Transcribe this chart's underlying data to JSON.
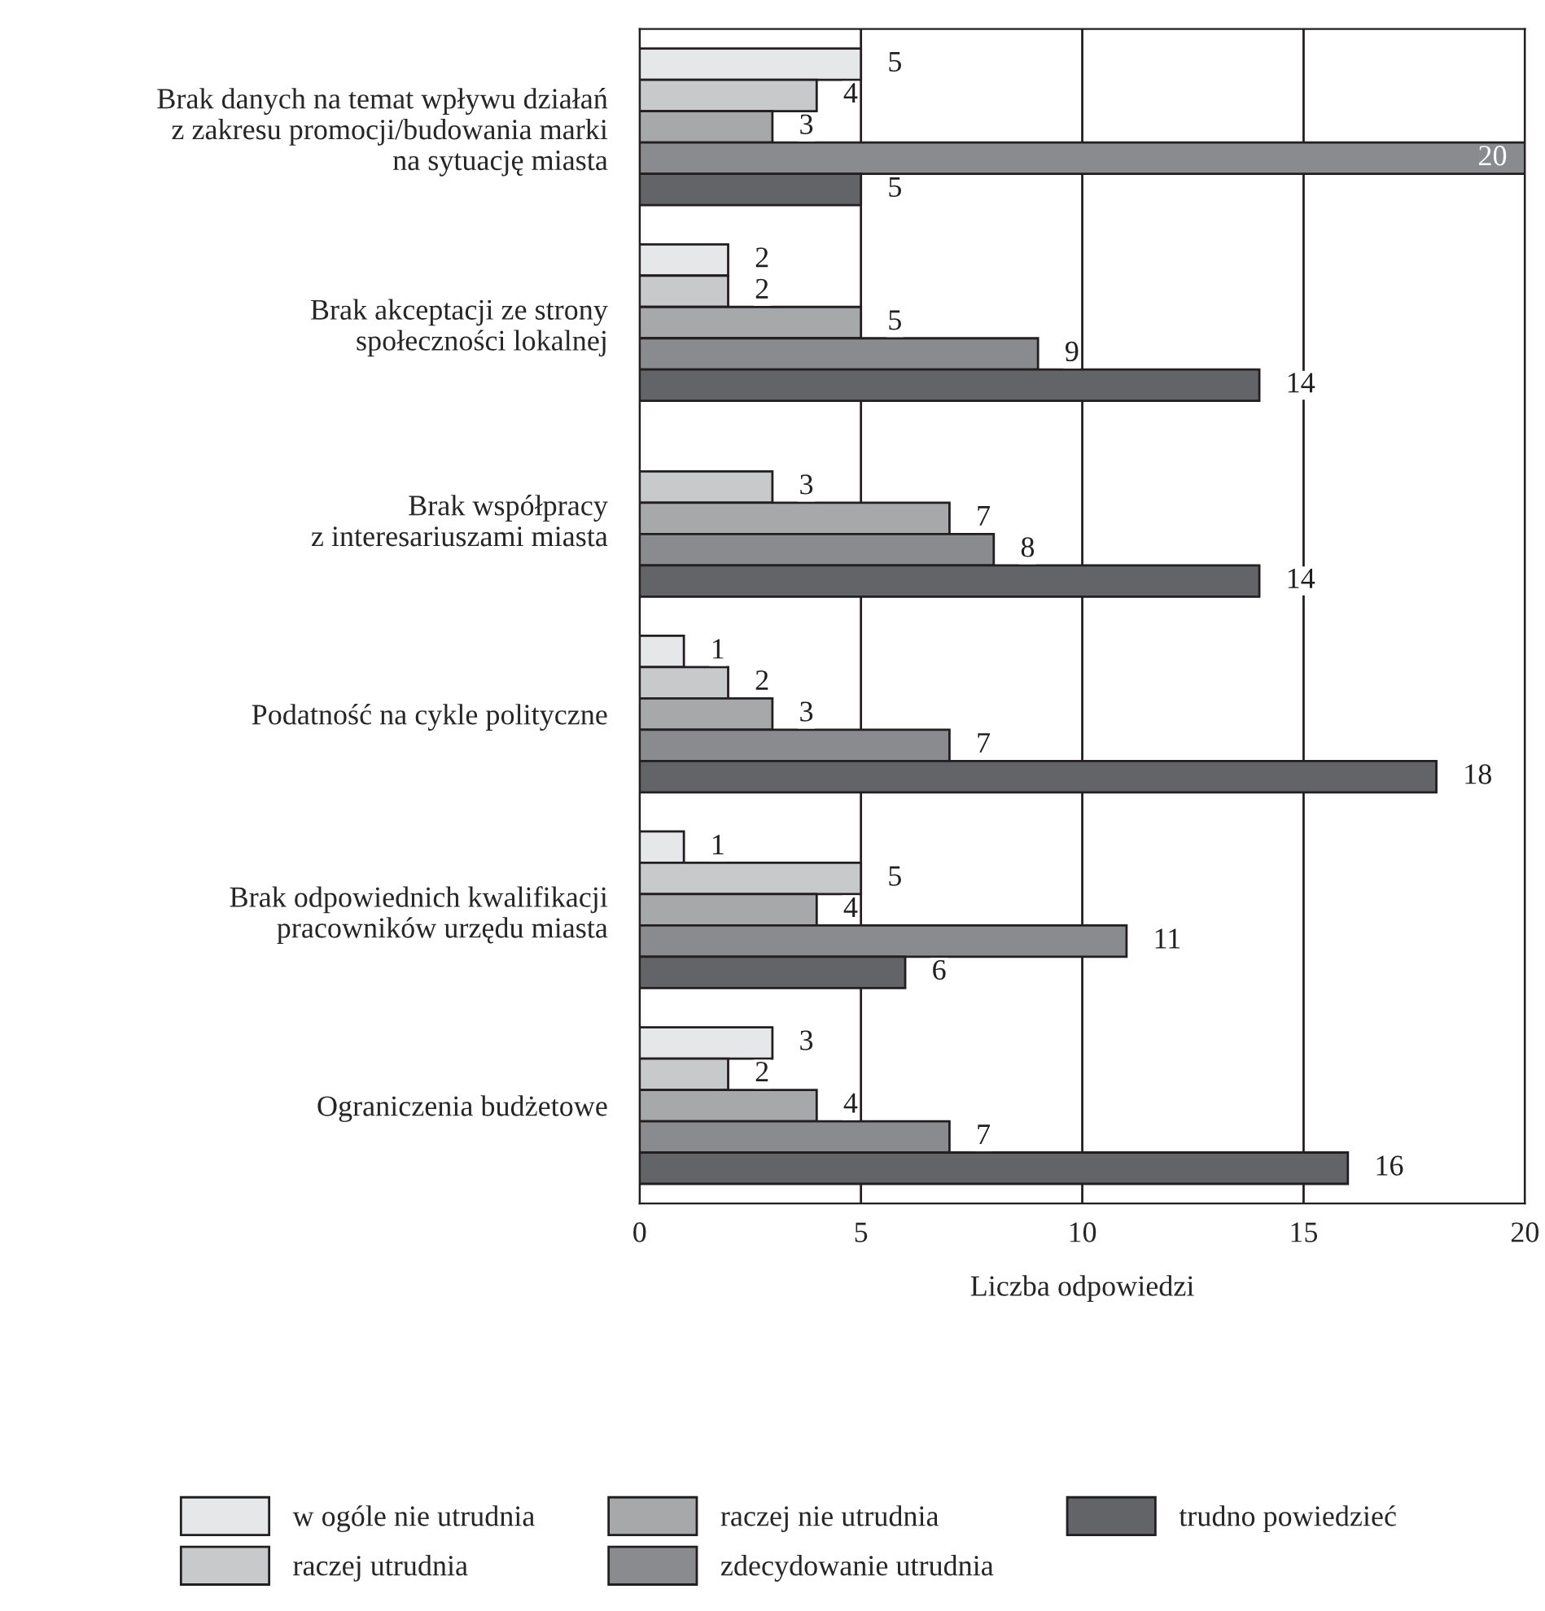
{
  "chart_data": {
    "type": "bar",
    "orientation": "horizontal",
    "xlabel": "Liczba odpowiedzi",
    "categories": [
      "Brak danych na temat wpływu działań\nz zakresu promocji/budowania marki\nna sytuację miasta",
      "Brak akceptacji ze strony\nspołeczności lokalnej",
      "Brak współpracy\nz interesariuszami miasta",
      "Podatność na cykle polityczne",
      "Brak odpowiednich kwalifikacji\npracowników urzędu miasta",
      "Ograniczenia budżetowe"
    ],
    "series": [
      {
        "name": "w ogóle nie utrudnia",
        "color": "#e6e7e8",
        "values": [
          5,
          2,
          null,
          1,
          1,
          3
        ]
      },
      {
        "name": "raczej utrudnia",
        "color": "#c8c9ca",
        "values": [
          4,
          2,
          3,
          2,
          5,
          2
        ]
      },
      {
        "name": "raczej nie utrudnia",
        "color": "#a7a8aa",
        "values": [
          3,
          5,
          7,
          3,
          4,
          4
        ]
      },
      {
        "name": "zdecydowanie utrudnia",
        "color": "#8a8b8e",
        "values": [
          20,
          9,
          8,
          7,
          11,
          7
        ]
      },
      {
        "name": "trudno powiedzieć",
        "color": "#636467",
        "values": [
          5,
          14,
          14,
          18,
          6,
          16
        ]
      }
    ],
    "xlim": [
      0,
      20
    ],
    "xticks": [
      0,
      5,
      10,
      15,
      20
    ],
    "grid": "x",
    "legend": "bottom",
    "data_labels": true
  }
}
